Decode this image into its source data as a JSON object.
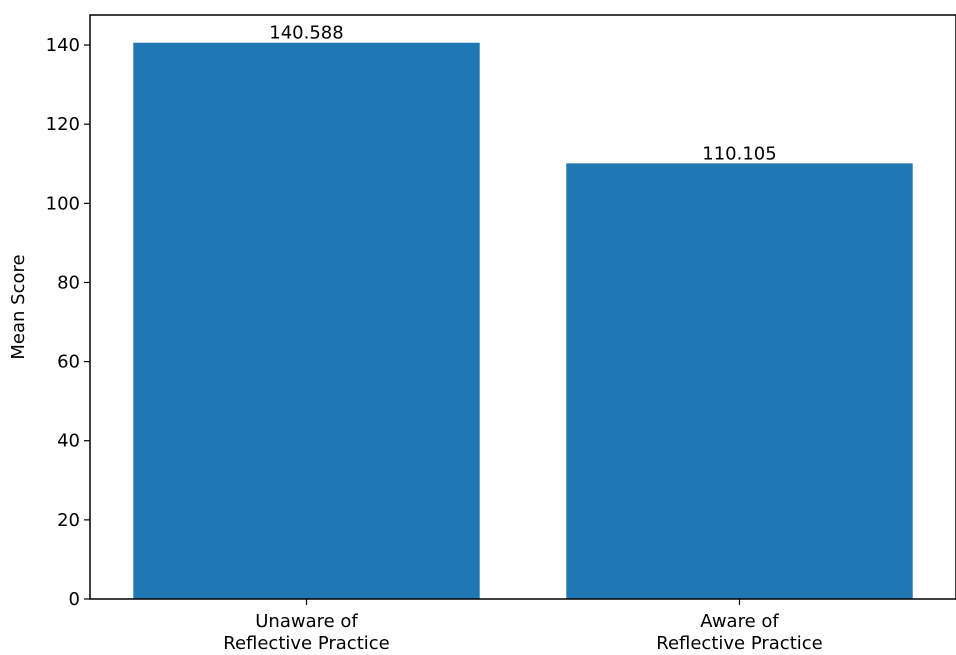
{
  "chart_data": {
    "type": "bar",
    "categories": [
      [
        "Unaware of",
        "Reflective Practice"
      ],
      [
        "Aware of",
        "Reflective Practice"
      ]
    ],
    "values": [
      140.588,
      110.105
    ],
    "data_labels": [
      "140.588",
      "110.105"
    ],
    "ylabel": "Mean Score",
    "xlabel": "",
    "ylim": [
      0,
      147.6
    ],
    "yticks": [
      0,
      20,
      40,
      60,
      80,
      100,
      120,
      140
    ],
    "bar_color": "#1f77b4",
    "grid": false,
    "legend": "none"
  }
}
